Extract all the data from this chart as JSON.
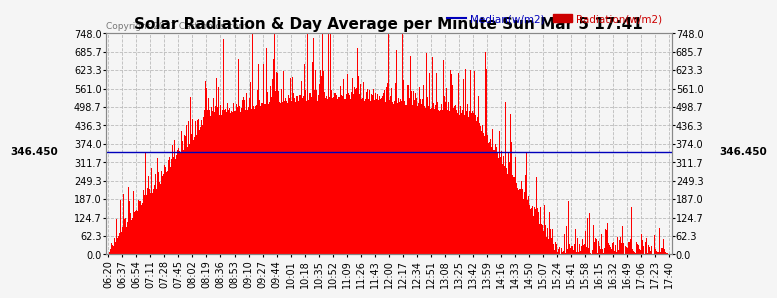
{
  "title": "Solar Radiation & Day Average per Minute Sun Mar 5 17:41",
  "copyright": "Copyright 2023 Cartronics.com",
  "legend_median": "Median(w/m2)",
  "legend_radiation": "Radiation(w/m2)",
  "median_value": 346.45,
  "y_ticks": [
    0.0,
    62.3,
    124.7,
    187.0,
    249.3,
    311.7,
    374.0,
    436.3,
    498.7,
    561.0,
    623.3,
    685.7,
    748.0
  ],
  "x_labels": [
    "06:20",
    "06:37",
    "06:54",
    "07:11",
    "07:28",
    "07:45",
    "08:02",
    "08:19",
    "08:36",
    "08:53",
    "09:10",
    "09:27",
    "09:44",
    "10:01",
    "10:18",
    "10:35",
    "10:52",
    "11:09",
    "11:26",
    "11:43",
    "12:00",
    "12:17",
    "12:34",
    "12:51",
    "13:08",
    "13:25",
    "13:42",
    "13:59",
    "14:16",
    "14:33",
    "14:50",
    "15:07",
    "15:24",
    "15:41",
    "15:58",
    "16:15",
    "16:32",
    "16:49",
    "17:06",
    "17:23",
    "17:40"
  ],
  "bar_color": "#ff0000",
  "background_color": "#f5f5f5",
  "grid_color": "#bbbbbb",
  "median_line_color": "#0000bb",
  "title_color": "#000000",
  "copyright_color": "#777777",
  "legend_median_color": "#0000bb",
  "legend_radiation_color": "#cc0000",
  "title_fontsize": 11,
  "tick_fontsize": 7,
  "ymax": 748.0
}
